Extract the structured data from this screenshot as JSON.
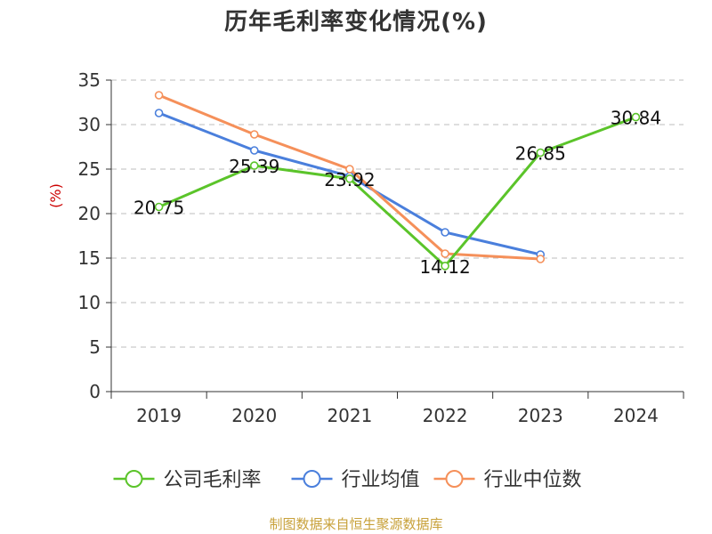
{
  "chart_data": {
    "type": "line",
    "title": "历年毛利率变化情况(%)",
    "ylabel": "(%)",
    "xlabel": "",
    "categories": [
      "2019",
      "2020",
      "2021",
      "2022",
      "2023",
      "2024"
    ],
    "ylim": [
      0,
      35
    ],
    "yticks": [
      0,
      5,
      10,
      15,
      20,
      25,
      30,
      35
    ],
    "grid": true,
    "legend_position": "bottom",
    "series": [
      {
        "name": "公司毛利率",
        "color": "#5bc42a",
        "values": [
          20.75,
          25.39,
          23.92,
          14.12,
          26.85,
          30.84
        ],
        "labels": [
          "20.75",
          "25.39",
          "23.92",
          "14.12",
          "26.85",
          "30.84"
        ]
      },
      {
        "name": "行业均值",
        "color": "#4a7fdc",
        "values": [
          31.3,
          27.1,
          24.2,
          17.9,
          15.4,
          null
        ]
      },
      {
        "name": "行业中位数",
        "color": "#f5905a",
        "values": [
          33.3,
          28.9,
          25.0,
          15.5,
          14.9,
          null
        ]
      }
    ]
  },
  "ylabel_color": "#cc0000",
  "source_text": "制图数据来自恒生聚源数据库",
  "source_color": "#c8a13a"
}
